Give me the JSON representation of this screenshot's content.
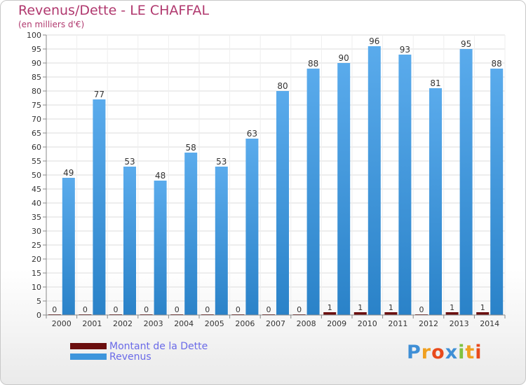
{
  "header": {
    "title": "Revenus/Dette - LE CHAFFAL",
    "subtitle": "(en milliers d'€)"
  },
  "legend": {
    "items": [
      {
        "label": "Montant de la Dette",
        "color": "#6b0f0f"
      },
      {
        "label": "Revenus",
        "color": "#3d95dc"
      }
    ]
  },
  "brand": {
    "text": "Proxiti",
    "letters": [
      {
        "ch": "P",
        "color": "#3f8fd6"
      },
      {
        "ch": "r",
        "color": "#f0a020"
      },
      {
        "ch": "o",
        "color": "#e84a1c"
      },
      {
        "ch": "x",
        "color": "#3f8fd6"
      },
      {
        "ch": "i",
        "color": "#7fc240"
      },
      {
        "ch": "t",
        "color": "#f0a020"
      },
      {
        "ch": "i",
        "color": "#e84a1c"
      }
    ]
  },
  "chart_data": {
    "type": "bar",
    "title": "Revenus/Dette - LE CHAFFAL",
    "subtitle": "(en milliers d'€)",
    "categories": [
      "2000",
      "2001",
      "2002",
      "2003",
      "2004",
      "2005",
      "2006",
      "2007",
      "2008",
      "2009",
      "2010",
      "2011",
      "2012",
      "2013",
      "2014"
    ],
    "series": [
      {
        "name": "Montant de la Dette",
        "color": "#6b0f0f",
        "values": [
          0,
          0,
          0,
          0,
          0,
          0,
          0,
          0,
          0,
          1,
          1,
          1,
          0,
          1,
          1
        ]
      },
      {
        "name": "Revenus",
        "color": "#3d95dc",
        "values": [
          49,
          77,
          53,
          48,
          58,
          53,
          63,
          80,
          88,
          90,
          96,
          93,
          81,
          95,
          88
        ]
      }
    ],
    "ylim": [
      0,
      100
    ],
    "ytick_step": 5,
    "grid": true,
    "legend_position": "bottom-left"
  }
}
